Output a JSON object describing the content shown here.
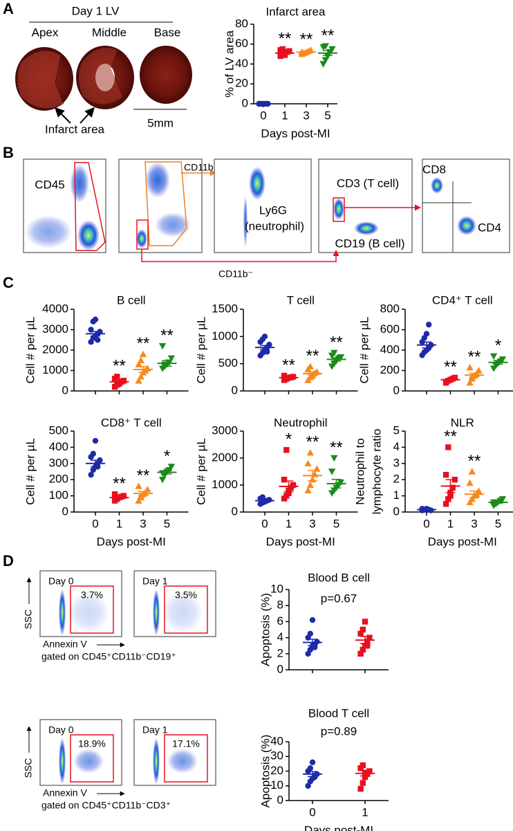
{
  "figure": {
    "panels": [
      "A",
      "B",
      "C",
      "D"
    ],
    "heart": {
      "title": "Day 1 LV",
      "sections": [
        "Apex",
        "Middle",
        "Base"
      ],
      "infarct": "Infarct area",
      "scale": "5mm"
    },
    "flow": {
      "cd45": "CD45",
      "cd11b_pos": "CD11b⁺",
      "ly6g": "Ly6G",
      "neutrophil": "(neutrophil)",
      "cd3": "CD3 (T cell)",
      "cd19": "CD19 (B cell)",
      "cd8": "CD8",
      "cd4": "CD4",
      "cd11b_neg": "CD11b⁻"
    },
    "apoptosis": [
      {
        "day0": "Day 0",
        "pct0": "3.7%",
        "day1": "Day 1",
        "pct1": "3.5%",
        "ssc": "SSC",
        "annexin": "Annexin V",
        "gate": "gated on CD45⁺CD11b⁻CD19⁺"
      },
      {
        "day0": "Day 0",
        "pct0": "18.9%",
        "day1": "Day 1",
        "pct1": "17.1%",
        "ssc": "SSC",
        "annexin": "Annexin V",
        "gate": "gated on CD45⁺CD11b⁻CD3⁺"
      }
    ]
  },
  "chart_data": [
    {
      "type": "dot",
      "title": "Infarct area",
      "ylabel": "% of LV area",
      "xlabel": "Days post-MI",
      "categories": [
        "0",
        "1",
        "3",
        "5"
      ],
      "colors": [
        "#1f2aa8",
        "#e8101e",
        "#f7891f",
        "#1a8a1a"
      ],
      "markers": [
        "circle",
        "square",
        "triangle",
        "triangle-down"
      ],
      "points": [
        [
          0,
          0,
          0,
          0,
          0,
          0
        ],
        [
          48,
          50,
          51,
          52,
          53,
          54,
          55,
          49
        ],
        [
          50,
          51,
          52,
          53,
          54,
          52
        ],
        [
          40,
          44,
          48,
          52,
          55,
          57,
          58
        ]
      ],
      "means": [
        0,
        51,
        52,
        51
      ],
      "sems": [
        0,
        1,
        0.7,
        2.5
      ],
      "significance": [
        null,
        "**",
        "**",
        "**"
      ],
      "ylim": [
        0,
        80
      ],
      "yticks": [
        0,
        20,
        40,
        60,
        80
      ]
    },
    {
      "type": "dot",
      "title": "B cell",
      "ylabel": "Cell # per µL",
      "categories": [
        null,
        null,
        null,
        null
      ],
      "colors": [
        "#1f2aa8",
        "#e8101e",
        "#f7891f",
        "#1a8a1a"
      ],
      "markers": [
        "circle",
        "square",
        "triangle",
        "triangle-down"
      ],
      "points": [
        [
          2400,
          2600,
          2700,
          2800,
          2900,
          3000,
          3400,
          3500,
          2500
        ],
        [
          200,
          300,
          400,
          450,
          500,
          600,
          700,
          350
        ],
        [
          500,
          700,
          900,
          1000,
          1100,
          1300,
          1500,
          1800
        ],
        [
          1100,
          1200,
          1300,
          1400,
          1600,
          2200,
          1300
        ]
      ],
      "means": [
        2800,
        450,
        1050,
        1350
      ],
      "sems": [
        110,
        60,
        140,
        140
      ],
      "significance": [
        null,
        "**",
        "**",
        "**"
      ],
      "ylim": [
        0,
        4000
      ],
      "yticks": [
        0,
        1000,
        2000,
        3000,
        4000
      ]
    },
    {
      "type": "dot",
      "title": "T cell",
      "ylabel": "Cell # per µL",
      "categories": [
        null,
        null,
        null,
        null
      ],
      "colors": [
        "#1f2aa8",
        "#e8101e",
        "#f7891f",
        "#1a8a1a"
      ],
      "markers": [
        "circle",
        "square",
        "triangle",
        "triangle-down"
      ],
      "points": [
        [
          650,
          700,
          750,
          800,
          850,
          900,
          950,
          1000,
          720
        ],
        [
          200,
          220,
          240,
          250,
          260,
          280,
          230
        ],
        [
          200,
          250,
          300,
          330,
          350,
          400,
          450,
          280
        ],
        [
          450,
          500,
          550,
          600,
          620,
          650,
          700
        ]
      ],
      "means": [
        800,
        245,
        320,
        580
      ],
      "sems": [
        35,
        10,
        28,
        30
      ],
      "significance": [
        null,
        "**",
        "**",
        "**"
      ],
      "ylim": [
        0,
        1500
      ],
      "yticks": [
        0,
        500,
        1000,
        1500
      ]
    },
    {
      "type": "dot",
      "title": "CD4⁺ T cell",
      "ylabel": "Cell # per µL",
      "categories": [
        null,
        null,
        null,
        null
      ],
      "colors": [
        "#1f2aa8",
        "#e8101e",
        "#f7891f",
        "#1a8a1a"
      ],
      "markers": [
        "circle",
        "square",
        "triangle",
        "triangle-down"
      ],
      "points": [
        [
          350,
          380,
          400,
          420,
          450,
          480,
          520,
          560,
          650
        ],
        [
          80,
          100,
          110,
          120,
          130,
          90
        ],
        [
          80,
          120,
          150,
          170,
          200,
          230,
          140
        ],
        [
          220,
          250,
          270,
          290,
          310,
          340
        ]
      ],
      "means": [
        450,
        110,
        155,
        280
      ],
      "sems": [
        30,
        8,
        18,
        18
      ],
      "significance": [
        null,
        "**",
        "**",
        "*"
      ],
      "ylim": [
        0,
        800
      ],
      "yticks": [
        0,
        200,
        400,
        600,
        800
      ]
    },
    {
      "type": "dot",
      "title": "CD8⁺ T cell",
      "ylabel": "Cell # per µL",
      "xlabel": "Days post-MI",
      "categories": [
        "0",
        "1",
        "3",
        "5"
      ],
      "colors": [
        "#1f2aa8",
        "#e8101e",
        "#f7891f",
        "#1a8a1a"
      ],
      "markers": [
        "circle",
        "square",
        "triangle",
        "triangle-down"
      ],
      "points": [
        [
          230,
          260,
          280,
          300,
          320,
          340,
          360,
          440,
          280
        ],
        [
          70,
          80,
          90,
          95,
          100,
          110,
          85
        ],
        [
          70,
          90,
          110,
          120,
          140,
          160,
          100
        ],
        [
          200,
          230,
          250,
          260,
          280,
          240
        ]
      ],
      "means": [
        300,
        90,
        115,
        245
      ],
      "sems": [
        20,
        5,
        12,
        10
      ],
      "significance": [
        null,
        "**",
        "**",
        "*"
      ],
      "ylim": [
        0,
        500
      ],
      "yticks": [
        0,
        100,
        200,
        300,
        400,
        500
      ]
    },
    {
      "type": "dot",
      "title": "Neutrophil",
      "ylabel": "Cell # per µL",
      "xlabel": "Days post-MI",
      "categories": [
        "0",
        "1",
        "3",
        "5"
      ],
      "colors": [
        "#1f2aa8",
        "#e8101e",
        "#f7891f",
        "#1a8a1a"
      ],
      "markers": [
        "circle",
        "square",
        "triangle",
        "triangle-down"
      ],
      "points": [
        [
          300,
          350,
          400,
          420,
          450,
          500,
          550,
          380
        ],
        [
          500,
          600,
          800,
          900,
          1000,
          1200,
          2300,
          700
        ],
        [
          800,
          1000,
          1200,
          1400,
          1600,
          1800,
          2200
        ],
        [
          700,
          800,
          900,
          1000,
          1100,
          1500,
          2000
        ]
      ],
      "means": [
        420,
        950,
        1350,
        1050
      ],
      "sems": [
        30,
        200,
        190,
        160
      ],
      "significance": [
        null,
        "*",
        "**",
        "**"
      ],
      "ylim": [
        0,
        3000
      ],
      "yticks": [
        0,
        1000,
        2000,
        3000
      ]
    },
    {
      "type": "dot",
      "title": "NLR",
      "ylabel": [
        "Neutrophil to",
        "lymphocyte ratio"
      ],
      "xlabel": "Days post-MI",
      "categories": [
        "0",
        "1",
        "3",
        "5"
      ],
      "colors": [
        "#1f2aa8",
        "#e8101e",
        "#f7891f",
        "#1a8a1a"
      ],
      "markers": [
        "circle",
        "square",
        "triangle",
        "triangle-down"
      ],
      "points": [
        [
          0.1,
          0.15,
          0.2,
          0.15,
          0.1,
          0.2
        ],
        [
          0.5,
          0.8,
          1.0,
          1.5,
          2.0,
          2.3,
          4.0,
          1.2
        ],
        [
          0.6,
          0.8,
          1.0,
          1.1,
          1.3,
          1.8,
          2.5
        ],
        [
          0.4,
          0.5,
          0.6,
          0.7,
          0.8,
          0.6
        ]
      ],
      "means": [
        0.15,
        1.6,
        1.1,
        0.6
      ],
      "sems": [
        0.02,
        0.4,
        0.2,
        0.05
      ],
      "significance": [
        null,
        "**",
        "**",
        null
      ],
      "ylim": [
        0,
        5
      ],
      "yticks": [
        0,
        1,
        2,
        3,
        4,
        5
      ]
    },
    {
      "type": "dot",
      "title": "Blood B cell",
      "ylabel": "Apoptosis (%)",
      "annotation": "p=0.67",
      "categories": [
        null,
        null
      ],
      "colors": [
        "#1f2aa8",
        "#e8101e"
      ],
      "markers": [
        "circle",
        "square"
      ],
      "points": [
        [
          2,
          2.5,
          3,
          3,
          3.5,
          4,
          4.5,
          6.2,
          2.8
        ],
        [
          2,
          2.5,
          3,
          3.5,
          4,
          4.5,
          5,
          6,
          3
        ]
      ],
      "means": [
        3.4,
        3.7
      ],
      "sems": [
        0.4,
        0.45
      ],
      "ylim": [
        0,
        10
      ],
      "yticks": [
        0,
        2,
        4,
        6,
        8,
        10
      ]
    },
    {
      "type": "dot",
      "title": "Blood T cell",
      "ylabel": "Apoptosis (%)",
      "xlabel": "Days post-MI",
      "annotation": "p=0.89",
      "categories": [
        "0",
        "1"
      ],
      "colors": [
        "#1f2aa8",
        "#e8101e"
      ],
      "markers": [
        "circle",
        "square"
      ],
      "points": [
        [
          10,
          13,
          15,
          17,
          18,
          20,
          22,
          26,
          16
        ],
        [
          8,
          12,
          16,
          18,
          20,
          22,
          24,
          19
        ]
      ],
      "means": [
        18,
        18.5
      ],
      "sems": [
        1.7,
        1.8
      ],
      "ylim": [
        0,
        40
      ],
      "yticks": [
        0,
        10,
        20,
        30,
        40
      ]
    }
  ]
}
